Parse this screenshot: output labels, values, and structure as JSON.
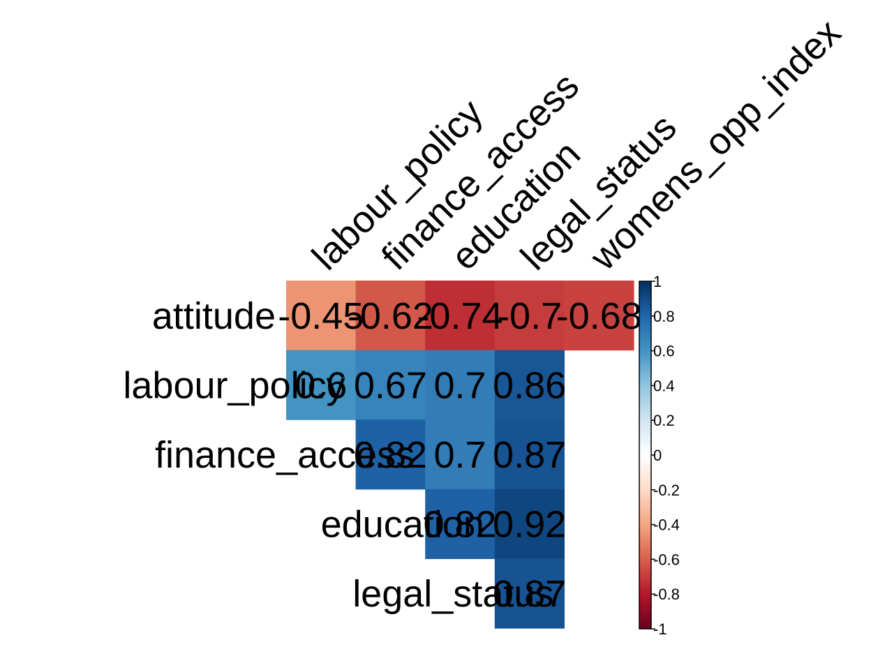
{
  "chart_data": {
    "type": "heatmap",
    "variant": "correlation-matrix-upper-triangle",
    "row_labels": [
      "attitude",
      "labour_policy",
      "finance_access",
      "education",
      "legal_status"
    ],
    "col_labels": [
      "labour_policy",
      "finance_access",
      "education",
      "legal_status",
      "womens_opp_index"
    ],
    "cells": [
      {
        "row": 0,
        "col": 0,
        "value": -0.45,
        "label": "-0.45"
      },
      {
        "row": 0,
        "col": 1,
        "value": -0.62,
        "label": "-0.62"
      },
      {
        "row": 0,
        "col": 2,
        "value": -0.74,
        "label": "-0.74"
      },
      {
        "row": 0,
        "col": 3,
        "value": -0.7,
        "label": "-0.7"
      },
      {
        "row": 0,
        "col": 4,
        "value": -0.68,
        "label": "-0.68"
      },
      {
        "row": 1,
        "col": 0,
        "value": 0.6,
        "label": "0.6"
      },
      {
        "row": 1,
        "col": 1,
        "value": 0.67,
        "label": "0.67"
      },
      {
        "row": 1,
        "col": 2,
        "value": 0.7,
        "label": "0.7"
      },
      {
        "row": 1,
        "col": 3,
        "value": 0.86,
        "label": "0.86"
      },
      {
        "row": 2,
        "col": 1,
        "value": 0.82,
        "label": "0.82"
      },
      {
        "row": 2,
        "col": 2,
        "value": 0.7,
        "label": "0.7"
      },
      {
        "row": 2,
        "col": 3,
        "value": 0.87,
        "label": "0.87"
      },
      {
        "row": 3,
        "col": 2,
        "value": 0.82,
        "label": "0.82"
      },
      {
        "row": 3,
        "col": 3,
        "value": 0.92,
        "label": "0.92"
      },
      {
        "row": 4,
        "col": 3,
        "value": 0.87,
        "label": "0.87"
      }
    ],
    "color_scale": {
      "range": [
        -1,
        1
      ],
      "palette": "RdBu",
      "stops": [
        {
          "value": -1,
          "color": "#67001F"
        },
        {
          "value": -0.8,
          "color": "#B2182B"
        },
        {
          "value": -0.6,
          "color": "#D6604D"
        },
        {
          "value": -0.4,
          "color": "#F4A582"
        },
        {
          "value": -0.2,
          "color": "#FDDBC7"
        },
        {
          "value": 0,
          "color": "#FFFFFF"
        },
        {
          "value": 0.2,
          "color": "#D1E5F0"
        },
        {
          "value": 0.4,
          "color": "#92C5DE"
        },
        {
          "value": 0.6,
          "color": "#4393C3"
        },
        {
          "value": 0.8,
          "color": "#2166AC"
        },
        {
          "value": 1,
          "color": "#053061"
        }
      ],
      "tick_labels": [
        "1",
        "0.8",
        "0.6",
        "0.4",
        "0.2",
        "0",
        "-0.2",
        "-0.4",
        "-0.6",
        "-0.8",
        "-1"
      ],
      "tick_values": [
        1,
        0.8,
        0.6,
        0.4,
        0.2,
        0,
        -0.2,
        -0.4,
        -0.6,
        -0.8,
        -1
      ]
    },
    "legend_position": "right",
    "col_label_rotation": "45-degrees",
    "grid": false
  }
}
